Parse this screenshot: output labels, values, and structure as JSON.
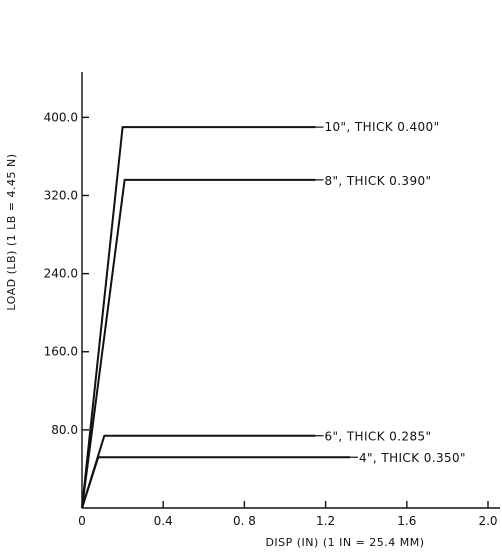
{
  "chart_data": {
    "type": "line",
    "title": "",
    "xlabel": "DISP (IN)  (1 IN = 25.4 MM)",
    "ylabel": "LOAD  (LB) (1 LB = 4.45 N)",
    "xlim": [
      0,
      2.0
    ],
    "ylim": [
      0,
      440
    ],
    "x_ticks": [
      0,
      0.4,
      0.8,
      1.2,
      1.6,
      2.0
    ],
    "x_tick_labels": [
      "0",
      "0.4",
      "0. 8",
      "1.2",
      "1.6",
      "2.0"
    ],
    "y_ticks": [
      80,
      160,
      240,
      320,
      400
    ],
    "y_tick_labels": [
      "80.0",
      "160.0",
      "240.0",
      "320.0",
      "400.0"
    ],
    "grid": false,
    "legend": "none",
    "series": [
      {
        "name": "10\", THICK 0.400\"",
        "x": [
          0.0,
          0.2,
          1.15
        ],
        "y": [
          0,
          390,
          390
        ]
      },
      {
        "name": "8\", THICK 0.390\"",
        "x": [
          0.0,
          0.21,
          1.15
        ],
        "y": [
          0,
          336,
          336
        ]
      },
      {
        "name": "6\", THICK 0.285\"",
        "x": [
          0.0,
          0.11,
          1.15
        ],
        "y": [
          0,
          74,
          74
        ]
      },
      {
        "name": "4\", THICK 0.350\"",
        "x": [
          0.0,
          0.08,
          1.32
        ],
        "y": [
          0,
          52,
          52
        ]
      }
    ]
  }
}
